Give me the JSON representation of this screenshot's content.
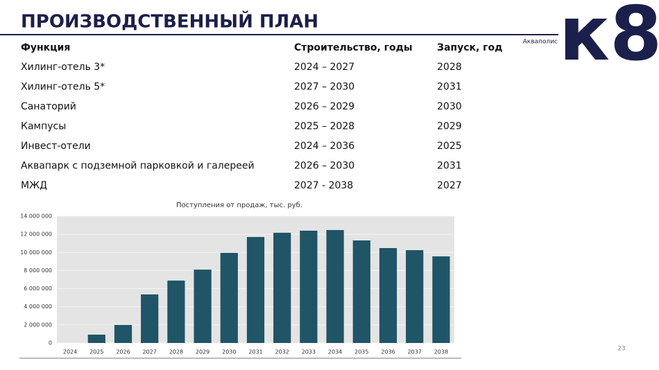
{
  "header": {
    "title": "ПРОИЗВОДСТВЕННЫЙ ПЛАН"
  },
  "logo": {
    "brand": "к8",
    "caption": "Акваполис"
  },
  "table": {
    "columns": [
      "Функция",
      "Строительство, годы",
      "Запуск, год"
    ],
    "rows": [
      [
        "Хилинг-отель 3*",
        "2024 – 2027",
        "2028"
      ],
      [
        "Хилинг-отель 5*",
        "2027 – 2030",
        "2031"
      ],
      [
        "Санаторий",
        "2026 – 2029",
        "2030"
      ],
      [
        "Кампусы",
        "2025 – 2028",
        "2029"
      ],
      [
        "Инвест-отели",
        "2024 – 2036",
        "2025"
      ],
      [
        "Аквапарк с подземной парковкой и галереей",
        "2026 – 2030",
        "2031"
      ],
      [
        "МЖД",
        "2027 - 2038",
        "2027"
      ]
    ]
  },
  "chart_data": {
    "type": "bar",
    "title": "Поступления от продаж, тыс. руб.",
    "categories": [
      "2024",
      "2025",
      "2026",
      "2027",
      "2028",
      "2029",
      "2030",
      "2031",
      "2032",
      "2033",
      "2034",
      "2035",
      "2036",
      "2037",
      "2038"
    ],
    "values": [
      0,
      920000,
      1990000,
      5360000,
      6890000,
      8100000,
      9950000,
      11700000,
      12170000,
      12400000,
      12470000,
      11320000,
      10480000,
      10250000,
      9560000
    ],
    "color": "#1f5566",
    "ylim": [
      0,
      14000000
    ],
    "yticks": [
      0,
      {
        "value": 2000000,
        "label": "2 000 000"
      },
      {
        "value": 4000000,
        "label": "4 000 000"
      },
      {
        "value": 6000000,
        "label": "6 000 000"
      },
      {
        "value": 8000000,
        "label": "8 000 000"
      },
      {
        "value": 10000000,
        "label": "10 000 000"
      },
      {
        "value": 12000000,
        "label": "12 000 000"
      },
      {
        "value": 14000000,
        "label": "14 000 000"
      }
    ],
    "grid": true
  },
  "page_number": 23
}
